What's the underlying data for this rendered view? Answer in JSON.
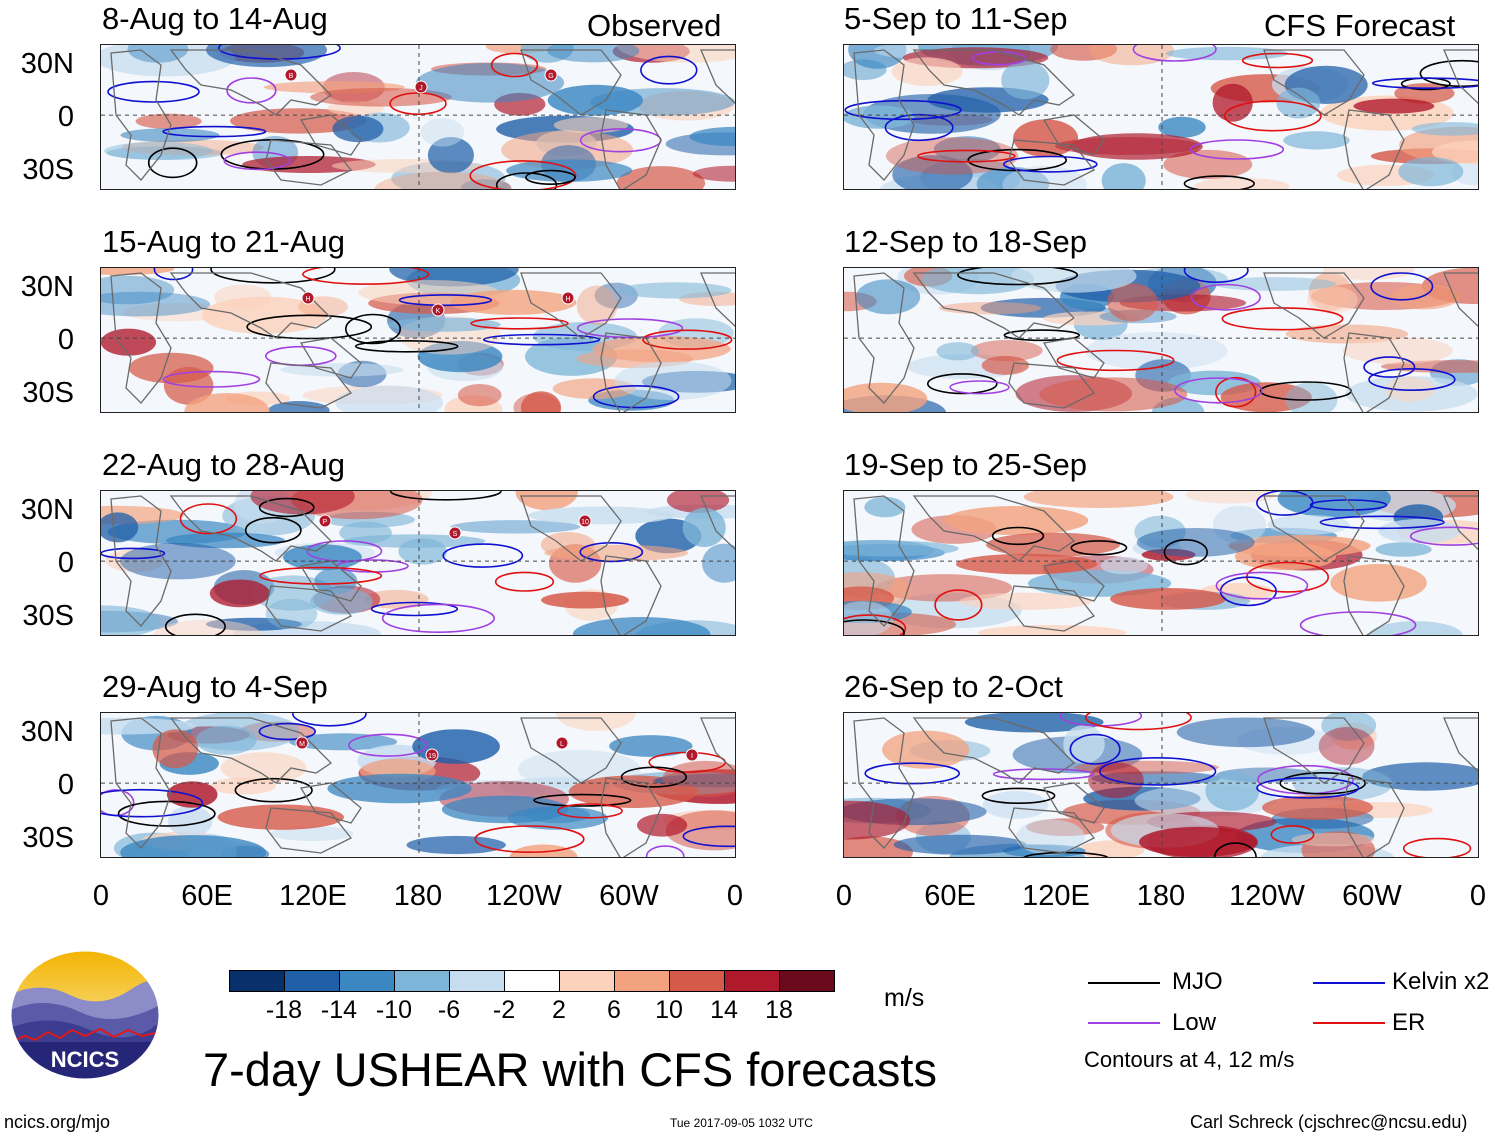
{
  "header": {
    "observed": "Observed",
    "forecast": "CFS Forecast"
  },
  "panels": {
    "left": [
      "8-Aug to 14-Aug",
      "15-Aug to 21-Aug",
      "22-Aug to 28-Aug",
      "29-Aug to 4-Sep"
    ],
    "right": [
      "5-Sep to 11-Sep",
      "12-Sep to 18-Sep",
      "19-Sep to 25-Sep",
      "26-Sep to 2-Oct"
    ]
  },
  "lat_labels": [
    "30N",
    "0",
    "30S"
  ],
  "lon_labels": [
    "0",
    "60E",
    "120E",
    "180",
    "120W",
    "60W",
    "0"
  ],
  "colorbar": {
    "unit": "m/s",
    "colors": [
      "#08306b",
      "#1f5fa8",
      "#3a87c2",
      "#7db5d8",
      "#c6ddef",
      "#ffffff",
      "#fcd2bc",
      "#f3a27f",
      "#d65a4a",
      "#b0182b",
      "#6a0a1c"
    ],
    "labels": [
      "-18",
      "-14",
      "-10",
      "-6",
      "-2",
      "2",
      "6",
      "10",
      "14",
      "18"
    ]
  },
  "legend": {
    "mjo": "MJO",
    "kelvin": "Kelvin x2",
    "low": "Low",
    "er": "ER",
    "note": "Contours at 4, 12 m/s",
    "colors": {
      "mjo": "#000000",
      "kelvin": "#1010d0",
      "low": "#a040e0",
      "er": "#e01010"
    }
  },
  "storm_markers": [
    [
      "B",
      "J",
      "G"
    ],
    [
      "H",
      "K",
      "H"
    ],
    [
      "P",
      "S",
      "10"
    ],
    [
      "M",
      "19",
      "L",
      "I"
    ]
  ],
  "logo": {
    "text": "NCICS"
  },
  "footer": {
    "title": "7-day USHEAR with CFS forecasts",
    "url": "ncics.org/mjo",
    "timestamp": "Tue 2017-09-05 1032 UTC",
    "author": "Carl Schreck (cjschrec@ncsu.edu)"
  }
}
